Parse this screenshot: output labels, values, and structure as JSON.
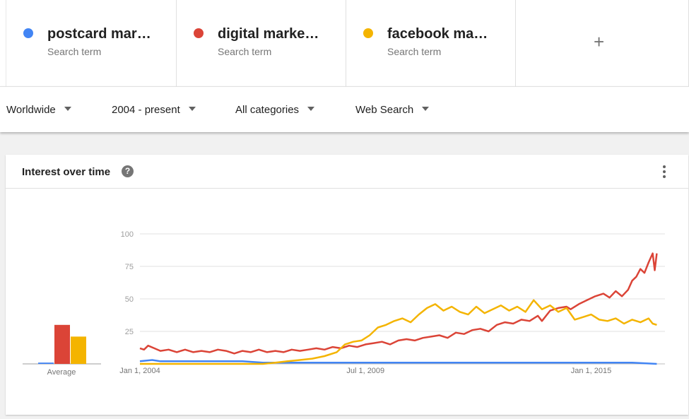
{
  "terms": [
    {
      "name": "postcard mar…",
      "sub": "Search term",
      "color": "#4285f4"
    },
    {
      "name": "digital marke…",
      "sub": "Search term",
      "color": "#db4437"
    },
    {
      "name": "facebook ma…",
      "sub": "Search term",
      "color": "#f4b400"
    }
  ],
  "add_label": "+",
  "filters": {
    "region": "Worldwide",
    "time": "2004 - present",
    "category": "All categories",
    "property": "Web Search"
  },
  "card": {
    "title": "Interest over time",
    "help": "?"
  },
  "chart_data": {
    "type": "line",
    "yticks": [
      "100",
      "75",
      "50",
      "25"
    ],
    "ylim": [
      0,
      100
    ],
    "xrange": [
      2004.0,
      2016.8
    ],
    "xticks": [
      {
        "label": "Jan 1, 2004",
        "x": 2004.0
      },
      {
        "label": "Jul 1, 2009",
        "x": 2009.5
      },
      {
        "label": "Jan 1, 2015",
        "x": 2015.0
      }
    ],
    "average_label": "Average",
    "averages": [
      {
        "name": "postcard mar…",
        "value": 1
      },
      {
        "name": "digital marke…",
        "value": 30
      },
      {
        "name": "facebook ma…",
        "value": 21
      }
    ],
    "series": [
      {
        "name": "postcard mar…",
        "color": "#4285f4",
        "points": [
          [
            2004.0,
            2
          ],
          [
            2004.3,
            3
          ],
          [
            2004.5,
            2
          ],
          [
            2004.8,
            2
          ],
          [
            2005.0,
            2
          ],
          [
            2005.5,
            2
          ],
          [
            2006.0,
            2
          ],
          [
            2006.5,
            2
          ],
          [
            2007.0,
            1
          ],
          [
            2007.5,
            1
          ],
          [
            2008.0,
            1
          ],
          [
            2009.0,
            1
          ],
          [
            2010.0,
            1
          ],
          [
            2011.0,
            1
          ],
          [
            2012.0,
            1
          ],
          [
            2013.0,
            1
          ],
          [
            2014.0,
            1
          ],
          [
            2015.0,
            1
          ],
          [
            2016.0,
            1
          ],
          [
            2016.6,
            0
          ]
        ]
      },
      {
        "name": "digital marke…",
        "color": "#db4437",
        "points": [
          [
            2004.0,
            12
          ],
          [
            2004.1,
            11
          ],
          [
            2004.2,
            14
          ],
          [
            2004.35,
            12
          ],
          [
            2004.5,
            10
          ],
          [
            2004.7,
            11
          ],
          [
            2004.9,
            9
          ],
          [
            2005.1,
            11
          ],
          [
            2005.3,
            9
          ],
          [
            2005.5,
            10
          ],
          [
            2005.7,
            9
          ],
          [
            2005.9,
            11
          ],
          [
            2006.1,
            10
          ],
          [
            2006.3,
            8
          ],
          [
            2006.5,
            10
          ],
          [
            2006.7,
            9
          ],
          [
            2006.9,
            11
          ],
          [
            2007.1,
            9
          ],
          [
            2007.3,
            10
          ],
          [
            2007.5,
            9
          ],
          [
            2007.7,
            11
          ],
          [
            2007.9,
            10
          ],
          [
            2008.1,
            11
          ],
          [
            2008.3,
            12
          ],
          [
            2008.5,
            11
          ],
          [
            2008.7,
            13
          ],
          [
            2008.9,
            12
          ],
          [
            2009.1,
            14
          ],
          [
            2009.3,
            13
          ],
          [
            2009.5,
            15
          ],
          [
            2009.7,
            16
          ],
          [
            2009.9,
            17
          ],
          [
            2010.1,
            15
          ],
          [
            2010.3,
            18
          ],
          [
            2010.5,
            19
          ],
          [
            2010.7,
            18
          ],
          [
            2010.9,
            20
          ],
          [
            2011.1,
            21
          ],
          [
            2011.3,
            22
          ],
          [
            2011.5,
            20
          ],
          [
            2011.7,
            24
          ],
          [
            2011.9,
            23
          ],
          [
            2012.1,
            26
          ],
          [
            2012.3,
            27
          ],
          [
            2012.5,
            25
          ],
          [
            2012.7,
            30
          ],
          [
            2012.9,
            32
          ],
          [
            2013.1,
            31
          ],
          [
            2013.3,
            34
          ],
          [
            2013.5,
            33
          ],
          [
            2013.7,
            37
          ],
          [
            2013.8,
            33
          ],
          [
            2014.0,
            41
          ],
          [
            2014.2,
            43
          ],
          [
            2014.4,
            44
          ],
          [
            2014.5,
            42
          ],
          [
            2014.7,
            46
          ],
          [
            2014.9,
            49
          ],
          [
            2015.1,
            52
          ],
          [
            2015.3,
            54
          ],
          [
            2015.45,
            51
          ],
          [
            2015.6,
            56
          ],
          [
            2015.75,
            52
          ],
          [
            2015.9,
            57
          ],
          [
            2016.0,
            64
          ],
          [
            2016.1,
            67
          ],
          [
            2016.2,
            73
          ],
          [
            2016.3,
            70
          ],
          [
            2016.4,
            78
          ],
          [
            2016.5,
            85
          ],
          [
            2016.55,
            72
          ],
          [
            2016.6,
            85
          ]
        ]
      },
      {
        "name": "facebook ma…",
        "color": "#f4b400",
        "points": [
          [
            2004.0,
            0
          ],
          [
            2005.0,
            0
          ],
          [
            2006.0,
            0
          ],
          [
            2007.0,
            0
          ],
          [
            2007.3,
            1
          ],
          [
            2007.6,
            2
          ],
          [
            2007.9,
            3
          ],
          [
            2008.2,
            4
          ],
          [
            2008.5,
            6
          ],
          [
            2008.8,
            9
          ],
          [
            2009.0,
            15
          ],
          [
            2009.2,
            17
          ],
          [
            2009.4,
            18
          ],
          [
            2009.6,
            22
          ],
          [
            2009.8,
            28
          ],
          [
            2010.0,
            30
          ],
          [
            2010.2,
            33
          ],
          [
            2010.4,
            35
          ],
          [
            2010.6,
            32
          ],
          [
            2010.8,
            38
          ],
          [
            2011.0,
            43
          ],
          [
            2011.2,
            46
          ],
          [
            2011.4,
            41
          ],
          [
            2011.6,
            44
          ],
          [
            2011.8,
            40
          ],
          [
            2012.0,
            38
          ],
          [
            2012.2,
            44
          ],
          [
            2012.4,
            39
          ],
          [
            2012.6,
            42
          ],
          [
            2012.8,
            45
          ],
          [
            2013.0,
            41
          ],
          [
            2013.2,
            44
          ],
          [
            2013.4,
            40
          ],
          [
            2013.6,
            49
          ],
          [
            2013.8,
            42
          ],
          [
            2014.0,
            45
          ],
          [
            2014.2,
            40
          ],
          [
            2014.4,
            43
          ],
          [
            2014.6,
            34
          ],
          [
            2014.8,
            36
          ],
          [
            2015.0,
            38
          ],
          [
            2015.2,
            34
          ],
          [
            2015.4,
            33
          ],
          [
            2015.6,
            35
          ],
          [
            2015.8,
            31
          ],
          [
            2016.0,
            34
          ],
          [
            2016.2,
            32
          ],
          [
            2016.4,
            35
          ],
          [
            2016.5,
            31
          ],
          [
            2016.6,
            30
          ]
        ]
      }
    ]
  }
}
